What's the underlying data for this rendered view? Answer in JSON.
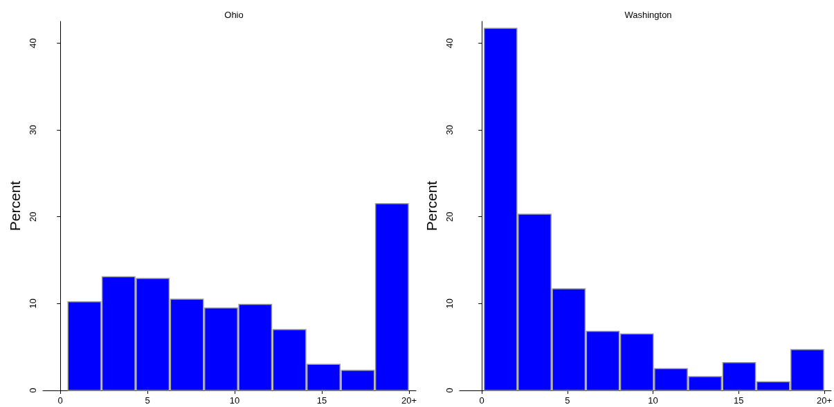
{
  "chart_data": [
    {
      "type": "histogram",
      "title": "Ohio",
      "ylabel": "Percent",
      "color": "#0000ff",
      "bins": [
        0.4,
        2.36,
        4.32,
        6.28,
        8.24,
        10.2,
        12.16,
        14.12,
        16.08,
        18.04,
        20
      ],
      "values": [
        10.2,
        13.1,
        12.9,
        10.5,
        9.5,
        9.9,
        7.0,
        3.0,
        2.3,
        21.5
      ],
      "xlim": [
        -1,
        20.4
      ],
      "xticks": [
        0,
        5,
        10,
        15,
        {
          "value": 20,
          "label": "20+"
        }
      ],
      "ylim": [
        0,
        42.5
      ],
      "yticks": [
        0,
        10,
        20,
        30,
        40
      ]
    },
    {
      "type": "histogram",
      "title": "Washington",
      "ylabel": "Percent",
      "color": "#0000ff",
      "bins": [
        0.1,
        2.09,
        4.08,
        6.07,
        8.06,
        10.05,
        12.04,
        14.03,
        16.02,
        18.01,
        20
      ],
      "values": [
        41.7,
        20.3,
        11.7,
        6.8,
        6.5,
        2.5,
        1.6,
        3.2,
        1.0,
        4.7
      ],
      "xlim": [
        -1.3,
        20.4
      ],
      "xticks": [
        0,
        5,
        10,
        15,
        {
          "value": 20,
          "label": "20+"
        }
      ],
      "ylim": [
        0,
        42.5
      ],
      "yticks": [
        0,
        10,
        20,
        30,
        40
      ]
    }
  ]
}
